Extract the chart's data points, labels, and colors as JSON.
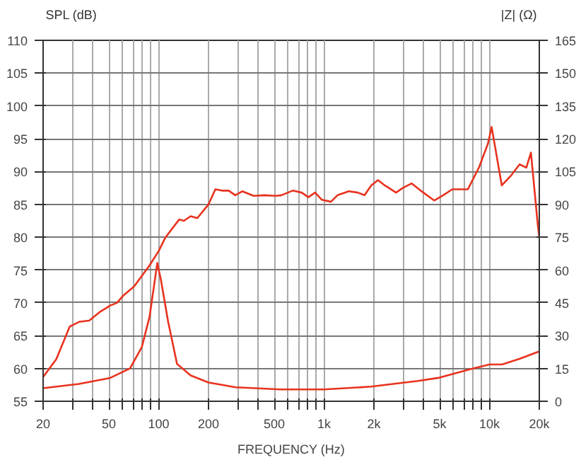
{
  "chart_data": {
    "type": "line",
    "xlabel": "FREQUENCY (Hz)",
    "ylabel": "SPL (dB)",
    "y2label": "|Z| (Ω)",
    "log": "x",
    "grid": true,
    "marker": "none",
    "line_style": "solid",
    "xlim": [
      20,
      20000
    ],
    "ylim": [
      55,
      110
    ],
    "y2lim": [
      0,
      165
    ],
    "xticks": [
      20,
      {
        "value": 30,
        "label": null
      },
      {
        "value": 40,
        "label": null
      },
      50,
      {
        "value": 60,
        "label": null
      },
      {
        "value": 70,
        "label": null
      },
      {
        "value": 80,
        "label": null
      },
      {
        "value": 90,
        "label": null
      },
      100,
      200,
      {
        "value": 300,
        "label": null
      },
      {
        "value": 400,
        "label": null
      },
      500,
      {
        "value": 600,
        "label": null
      },
      {
        "value": 700,
        "label": null
      },
      {
        "value": 800,
        "label": null
      },
      {
        "value": 900,
        "label": null
      },
      {
        "value": 1000,
        "label": "1k"
      },
      {
        "value": 2000,
        "label": "2k"
      },
      {
        "value": 3000,
        "label": null
      },
      {
        "value": 4000,
        "label": null
      },
      {
        "value": 5000,
        "label": "5k"
      },
      {
        "value": 6000,
        "label": null
      },
      {
        "value": 7000,
        "label": null
      },
      {
        "value": 8000,
        "label": null
      },
      {
        "value": 9000,
        "label": null
      },
      {
        "value": 10000,
        "label": "10k"
      },
      {
        "value": 20000,
        "label": "20k"
      }
    ],
    "yticks": [
      55,
      60,
      65,
      70,
      75,
      80,
      85,
      90,
      95,
      100,
      105,
      110
    ],
    "y2ticks": [
      0,
      15,
      30,
      45,
      60,
      75,
      90,
      105,
      120,
      135,
      150,
      165
    ],
    "series": [
      {
        "color": "#e8321e",
        "x": [
          20,
          24,
          29,
          33,
          38,
          44,
          51,
          56,
          61,
          71,
          88,
          100,
          110,
          133,
          142,
          156,
          171,
          200,
          220,
          241,
          265,
          290,
          320,
          375,
          436,
          510,
          552,
          646,
          731,
          803,
          882,
          969,
          1099,
          1206,
          1411,
          1598,
          1756,
          1928,
          2118,
          2327,
          2722,
          2988,
          3386,
          3836,
          4630,
          5250,
          5950,
          7400,
          8660,
          9800,
          10300,
          11860,
          13400,
          15200,
          16700,
          17800,
          19600,
          20000
        ],
        "values": [
          58.7,
          61.4,
          66.4,
          67.1,
          67.3,
          68.6,
          69.6,
          70,
          71.1,
          72.5,
          75.7,
          77.9,
          80,
          82.7,
          82.5,
          83.2,
          82.9,
          85,
          87.3,
          87.1,
          87.1,
          86.4,
          87,
          86.3,
          86.4,
          86.3,
          86.4,
          87.1,
          86.8,
          86.1,
          86.8,
          85.7,
          85.4,
          86.4,
          87,
          86.8,
          86.4,
          87.9,
          88.7,
          87.9,
          86.8,
          87.5,
          88.2,
          87.1,
          85.6,
          86.4,
          87.3,
          87.3,
          90.7,
          94.3,
          96.8,
          87.9,
          89.3,
          91.1,
          90.6,
          92.9,
          81.8,
          80
        ]
      },
      {
        "color": "#e8321e",
        "axis": "y2",
        "x": [
          20,
          33,
          51,
          67,
          79,
          88,
          94,
          98,
          103,
          114,
          129,
          156,
          200,
          292,
          545,
          1000,
          1930,
          3700,
          5000,
          7700,
          10000,
          11900,
          15200,
          20000
        ],
        "values": [
          6,
          7.9,
          10.7,
          15,
          24.7,
          38.6,
          53.6,
          63.2,
          55.7,
          36.4,
          17.1,
          11.8,
          8.6,
          6.4,
          5.4,
          5.4,
          6.7,
          9.3,
          10.8,
          14.7,
          16.8,
          16.8,
          19.4,
          22.8
        ]
      }
    ]
  }
}
